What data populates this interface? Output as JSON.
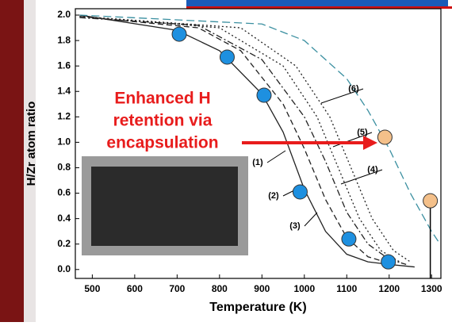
{
  "chart_data": {
    "type": "line",
    "xlabel": "Temperature (K)",
    "ylabel": "H/Zr atom ratio",
    "xlim": [
      460,
      1322
    ],
    "ylim": [
      -0.07,
      2.05
    ],
    "xticks": [
      500,
      600,
      700,
      800,
      900,
      1000,
      1100,
      1200,
      1300
    ],
    "yticks": [
      {
        "value": 0,
        "label": "0.0"
      },
      {
        "value": 0.2,
        "label": "0.2"
      },
      {
        "value": 0.4,
        "label": "0.4"
      },
      {
        "value": 0.6,
        "label": "0.6"
      },
      {
        "value": 0.8,
        "label": "0.8"
      },
      {
        "value": 1,
        "label": "1.0"
      },
      {
        "value": 1.2,
        "label": "1.2"
      },
      {
        "value": 1.4,
        "label": "1.4"
      },
      {
        "value": 1.6,
        "label": "1.6"
      },
      {
        "value": 1.8,
        "label": "1.8"
      },
      {
        "value": 2,
        "label": "2.0"
      }
    ],
    "series": [
      {
        "name": "(1)",
        "color": "#222222",
        "dash": "solid",
        "x": [
          470,
          700,
          800,
          900,
          950,
          1000,
          1050,
          1100,
          1150,
          1200,
          1260
        ],
        "values": [
          2.0,
          1.88,
          1.72,
          1.38,
          1.08,
          0.63,
          0.3,
          0.12,
          0.06,
          0.04,
          0.02
        ]
      },
      {
        "name": "(2)",
        "color": "#222222",
        "dash": "dashed",
        "x": [
          470,
          750,
          850,
          950,
          1000,
          1050,
          1100,
          1150,
          1200
        ],
        "values": [
          1.99,
          1.9,
          1.72,
          1.3,
          0.95,
          0.55,
          0.25,
          0.1,
          0.05
        ]
      },
      {
        "name": "(3)",
        "color": "#222222",
        "dash": "dashdot",
        "x": [
          470,
          750,
          900,
          1000,
          1050,
          1100,
          1150,
          1200,
          1240
        ],
        "values": [
          1.98,
          1.92,
          1.65,
          1.2,
          0.85,
          0.45,
          0.2,
          0.08,
          0.04
        ]
      },
      {
        "name": "(4)",
        "color": "#222222",
        "dash": "dotted",
        "x": [
          470,
          800,
          950,
          1030,
          1080,
          1130,
          1180,
          1230
        ],
        "values": [
          1.99,
          1.9,
          1.6,
          1.2,
          0.8,
          0.4,
          0.15,
          0.05
        ]
      },
      {
        "name": "(5)",
        "color": "#222222",
        "dash": "dotted",
        "x": [
          470,
          850,
          980,
          1060,
          1110,
          1160,
          1210,
          1250
        ],
        "values": [
          1.99,
          1.9,
          1.6,
          1.2,
          0.8,
          0.4,
          0.15,
          0.06
        ]
      },
      {
        "name": "(6)",
        "color": "#3a8fa0",
        "dash": "longdash",
        "x": [
          470,
          900,
          1000,
          1100,
          1150,
          1200,
          1250,
          1300,
          1320
        ],
        "values": [
          2.0,
          1.93,
          1.8,
          1.5,
          1.25,
          0.95,
          0.6,
          0.3,
          0.2
        ]
      }
    ],
    "markers": [
      {
        "color": "#1e90e0",
        "x": [
          705,
          818,
          905,
          990,
          1105,
          1198
        ],
        "values": [
          1.85,
          1.67,
          1.37,
          0.61,
          0.24,
          0.06
        ]
      },
      {
        "color": "#f4c08a",
        "x": [
          1190,
          1297
        ],
        "values": [
          1.04,
          0.54
        ]
      }
    ],
    "annotation": [
      "Enhanced H",
      "retention via",
      "encapsulation"
    ]
  }
}
